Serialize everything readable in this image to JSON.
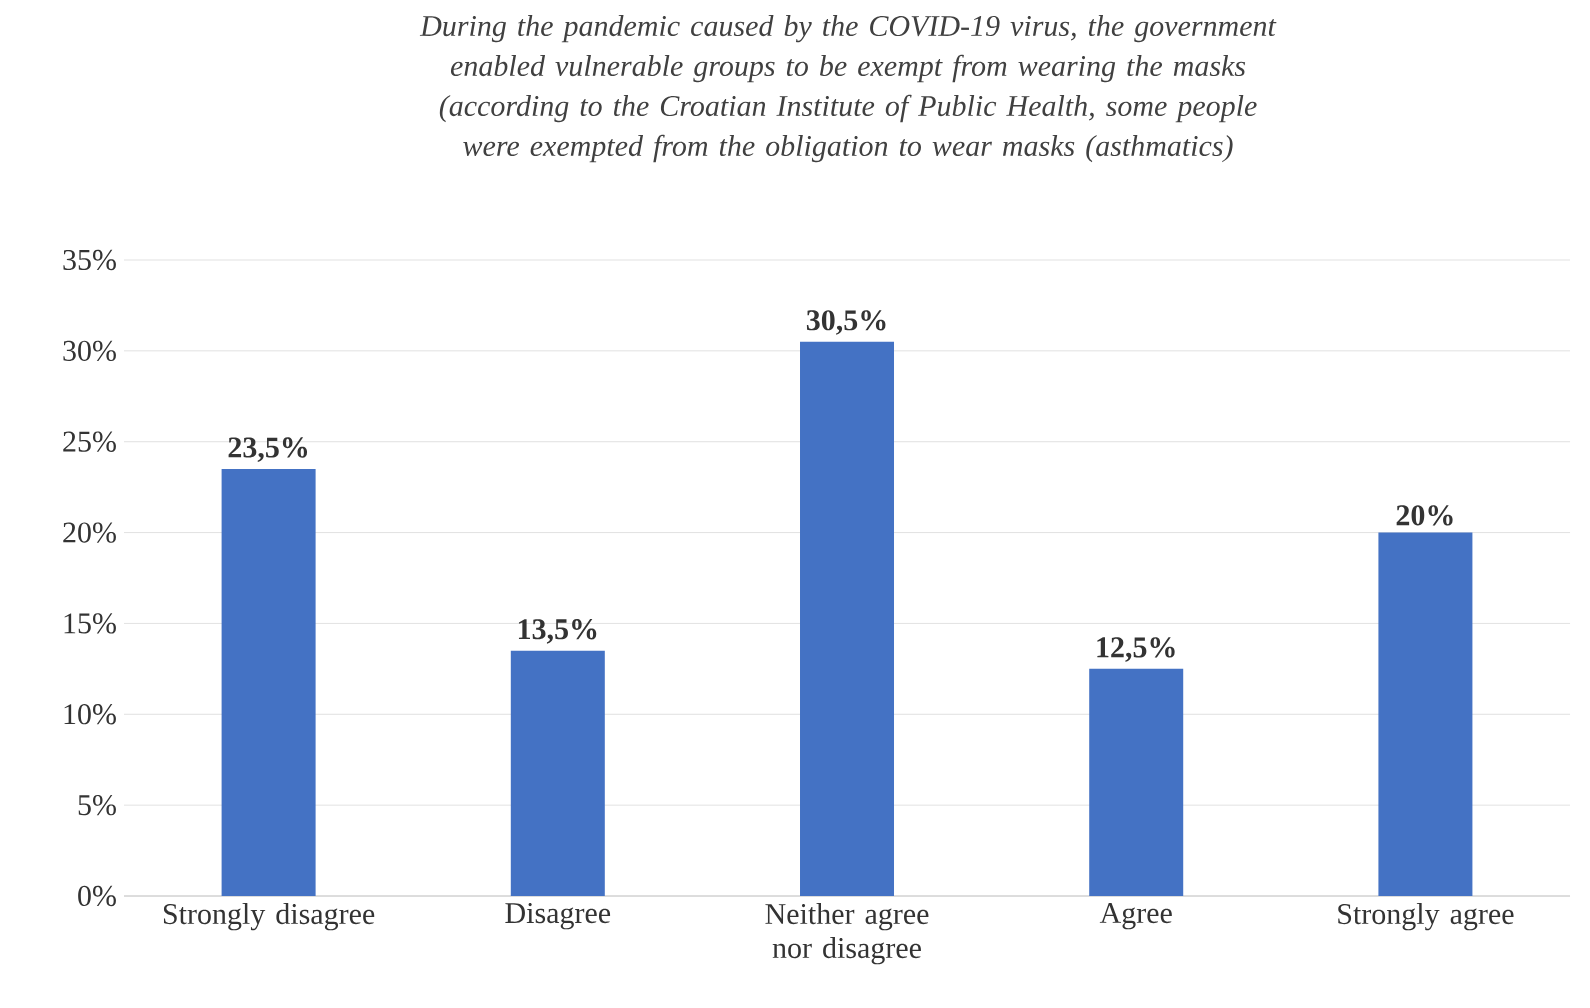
{
  "chart_data": {
    "type": "bar",
    "title": "During the pandemic caused by the COVID-19 virus, the government enabled vulnerable groups to be exempt from wearing the masks (according to the Croatian Institute of Public Health, some people were exempted from the obligation to wear masks (asthmatics)",
    "categories": [
      "Strongly disagree",
      "Disagree",
      "Neither agree nor disagree",
      "Agree",
      "Strongly agree"
    ],
    "values": [
      23.5,
      13.5,
      30.5,
      12.5,
      20
    ],
    "value_labels": [
      "23,5%",
      "13,5%",
      "30,5%",
      "12,5%",
      "20%"
    ],
    "color": "#4472c4",
    "ylim": [
      0,
      35
    ],
    "yticks": [
      {
        "value": 0,
        "label": "0%"
      },
      {
        "value": 5,
        "label": "5%"
      },
      {
        "value": 10,
        "label": "10%"
      },
      {
        "value": 15,
        "label": "15%"
      },
      {
        "value": 20,
        "label": "20%"
      },
      {
        "value": 25,
        "label": "25%"
      },
      {
        "value": 30,
        "label": "30%"
      },
      {
        "value": 35,
        "label": "35%"
      }
    ],
    "grid": "y"
  }
}
